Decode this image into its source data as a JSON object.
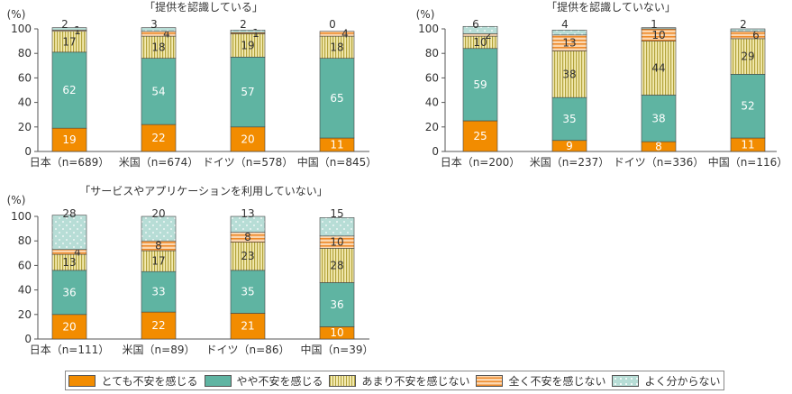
{
  "colors": {
    "very_anxious": "#f28c00",
    "somewhat_anxious": "#5fb4a2",
    "not_very_anxious": "#e9de8c",
    "not_anxious_at_all": "#f7a860",
    "dont_know": "#b7ddd6"
  },
  "legend": {
    "items": [
      {
        "key": "very_anxious",
        "label": "とても不安を感じる"
      },
      {
        "key": "somewhat_anxious",
        "label": "やや不安を感じる"
      },
      {
        "key": "not_very_anxious",
        "label": "あまり不安を感じない"
      },
      {
        "key": "not_anxious_at_all",
        "label": "全く不安を感じない"
      },
      {
        "key": "dont_know",
        "label": "よく分からない"
      }
    ]
  },
  "chart_data": [
    {
      "type": "bar",
      "stacked": true,
      "title": "「提供を認識している」",
      "ylabel": "(%)",
      "ylim": [
        0,
        100
      ],
      "yticks": [
        0,
        20,
        40,
        60,
        80,
        100
      ],
      "categories": [
        "日本（n=689）",
        "米国（n=674）",
        "ドイツ（n=578）",
        "中国（n=845）"
      ],
      "series": [
        {
          "name": "とても不安を感じる",
          "key": "very_anxious",
          "values": [
            19,
            22,
            20,
            11
          ]
        },
        {
          "name": "やや不安を感じる",
          "key": "somewhat_anxious",
          "values": [
            62,
            54,
            57,
            65
          ]
        },
        {
          "name": "あまり不安を感じない",
          "key": "not_very_anxious",
          "values": [
            17,
            18,
            19,
            18
          ]
        },
        {
          "name": "全く不安を感じない",
          "key": "not_anxious_at_all",
          "values": [
            1,
            4,
            1,
            4
          ]
        },
        {
          "name": "よく分からない",
          "key": "dont_know",
          "values": [
            2,
            3,
            2,
            0
          ]
        }
      ]
    },
    {
      "type": "bar",
      "stacked": true,
      "title": "「提供を認識していない」",
      "ylabel": "(%)",
      "ylim": [
        0,
        100
      ],
      "yticks": [
        0,
        20,
        40,
        60,
        80,
        100
      ],
      "categories": [
        "日本（n=200）",
        "米国（n=237）",
        "ドイツ（n=336）",
        "中国（n=116）"
      ],
      "series": [
        {
          "name": "とても不安を感じる",
          "key": "very_anxious",
          "values": [
            25,
            9,
            8,
            11
          ]
        },
        {
          "name": "やや不安を感じる",
          "key": "somewhat_anxious",
          "values": [
            59,
            35,
            38,
            52
          ]
        },
        {
          "name": "あまり不安を感じない",
          "key": "not_very_anxious",
          "values": [
            10,
            38,
            44,
            29
          ]
        },
        {
          "name": "全く不安を感じない",
          "key": "not_anxious_at_all",
          "values": [
            2,
            13,
            10,
            6
          ]
        },
        {
          "name": "よく分からない",
          "key": "dont_know",
          "values": [
            6,
            4,
            1,
            2
          ]
        }
      ]
    },
    {
      "type": "bar",
      "stacked": true,
      "title": "「サービスやアプリケーションを利用していない」",
      "ylabel": "(%)",
      "ylim": [
        0,
        100
      ],
      "yticks": [
        0,
        20,
        40,
        60,
        80,
        100
      ],
      "categories": [
        "日本（n=111）",
        "米国（n=89）",
        "ドイツ（n=86）",
        "中国（n=39）"
      ],
      "series": [
        {
          "name": "とても不安を感じる",
          "key": "very_anxious",
          "values": [
            20,
            22,
            21,
            10
          ]
        },
        {
          "name": "やや不安を感じる",
          "key": "somewhat_anxious",
          "values": [
            36,
            33,
            35,
            36
          ]
        },
        {
          "name": "あまり不安を感じない",
          "key": "not_very_anxious",
          "values": [
            13,
            17,
            23,
            28
          ]
        },
        {
          "name": "全く不安を感じない",
          "key": "not_anxious_at_all",
          "values": [
            4,
            8,
            8,
            10
          ]
        },
        {
          "name": "よく分からない",
          "key": "dont_know",
          "values": [
            28,
            20,
            13,
            15
          ]
        }
      ]
    }
  ]
}
